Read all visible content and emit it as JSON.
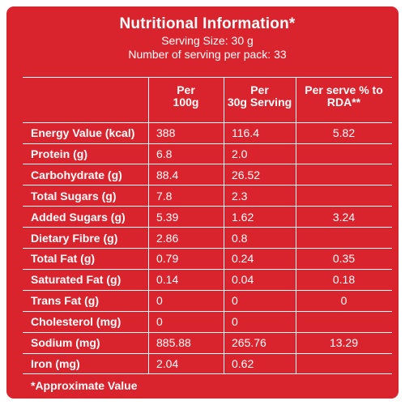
{
  "header": {
    "title": "Nutritional Information*",
    "serving_size": "Serving Size: 30 g",
    "servings_per_pack": "Number of serving per pack: 33"
  },
  "table": {
    "columns": [
      "",
      "Per\n100g",
      "Per\n30g Serving",
      "Per serve % to\nRDA**"
    ],
    "rows": [
      {
        "name": "Energy Value (kcal)",
        "per100": "388",
        "per30": "116.4",
        "rda": "5.82"
      },
      {
        "name": "Protein (g)",
        "per100": "6.8",
        "per30": "2.0",
        "rda": ""
      },
      {
        "name": "Carbohydrate (g)",
        "per100": "88.4",
        "per30": "26.52",
        "rda": ""
      },
      {
        "name": "Total Sugars (g)",
        "per100": "7.8",
        "per30": "2.3",
        "rda": ""
      },
      {
        "name": "Added Sugars (g)",
        "per100": "5.39",
        "per30": "1.62",
        "rda": "3.24"
      },
      {
        "name": "Dietary Fibre (g)",
        "per100": "2.86",
        "per30": "0.8",
        "rda": ""
      },
      {
        "name": "Total Fat (g)",
        "per100": "0.79",
        "per30": "0.24",
        "rda": "0.35"
      },
      {
        "name": "Saturated Fat (g)",
        "per100": "0.14",
        "per30": "0.04",
        "rda": "0.18"
      },
      {
        "name": "Trans Fat (g)",
        "per100": "0",
        "per30": "0",
        "rda": "0"
      },
      {
        "name": "Cholesterol (mg)",
        "per100": "0",
        "per30": "0",
        "rda": ""
      },
      {
        "name": "Sodium (mg)",
        "per100": "885.88",
        "per30": "265.76",
        "rda": "13.29"
      },
      {
        "name": "Iron (mg)",
        "per100": "2.04",
        "per30": "0.62",
        "rda": ""
      }
    ]
  },
  "footer": {
    "note": "*Approximate Value"
  },
  "colors": {
    "panel": "#d9232d",
    "text": "#ffffff"
  }
}
